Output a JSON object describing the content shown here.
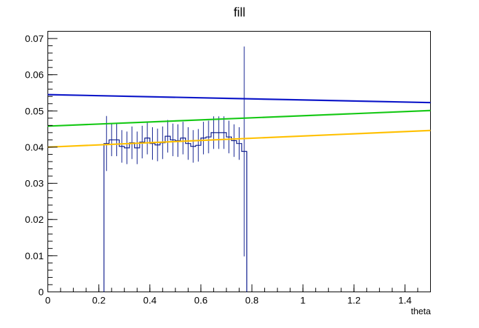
{
  "chart_data": {
    "type": "line",
    "title": "fill",
    "xlabel": "theta",
    "ylabel": "",
    "xlim": [
      0,
      1.5
    ],
    "ylim": [
      0,
      0.072
    ],
    "grid": false,
    "legend": "none",
    "x_ticks": [
      0,
      0.2,
      0.4,
      0.6,
      0.8,
      1,
      1.2,
      1.4
    ],
    "x_tick_labels": [
      "0",
      "0.2",
      "0.4",
      "0.6",
      "0.8",
      "1",
      "1.2",
      "1.4"
    ],
    "y_ticks": [
      0,
      0.01,
      0.02,
      0.03,
      0.04,
      0.05,
      0.06,
      0.07
    ],
    "y_tick_labels": [
      "0",
      "0.01",
      "0.02",
      "0.03",
      "0.04",
      "0.05",
      "0.06",
      "0.07"
    ],
    "histogram": {
      "color": "#0b1a8c",
      "bin_width": 0.02,
      "x_start": 0.22,
      "values": [
        0.041,
        0.042,
        0.042,
        0.0402,
        0.0398,
        0.0412,
        0.0398,
        0.0414,
        0.0425,
        0.041,
        0.0406,
        0.0412,
        0.043,
        0.042,
        0.0418,
        0.0425,
        0.041,
        0.0402,
        0.0405,
        0.0425,
        0.0428,
        0.044,
        0.044,
        0.044,
        0.0428,
        0.0418,
        0.041,
        0.0388
      ],
      "errors": [
        0.0076,
        0.0045,
        0.0045,
        0.0045,
        0.0045,
        0.0045,
        0.0045,
        0.0045,
        0.0045,
        0.0045,
        0.0045,
        0.0045,
        0.0045,
        0.0045,
        0.0045,
        0.0045,
        0.0045,
        0.0045,
        0.0045,
        0.0045,
        0.0045,
        0.0045,
        0.0045,
        0.0045,
        0.0045,
        0.0045,
        0.0045,
        0.029
      ]
    },
    "series": [
      {
        "color": "#0a14c8",
        "x": [
          0,
          1.5
        ],
        "y": [
          0.0545,
          0.0523
        ]
      },
      {
        "color": "#14c814",
        "x": [
          0,
          1.5
        ],
        "y": [
          0.0458,
          0.0501
        ]
      },
      {
        "color": "#ffc000",
        "x": [
          0,
          1.5
        ],
        "y": [
          0.04,
          0.0446
        ]
      }
    ]
  }
}
